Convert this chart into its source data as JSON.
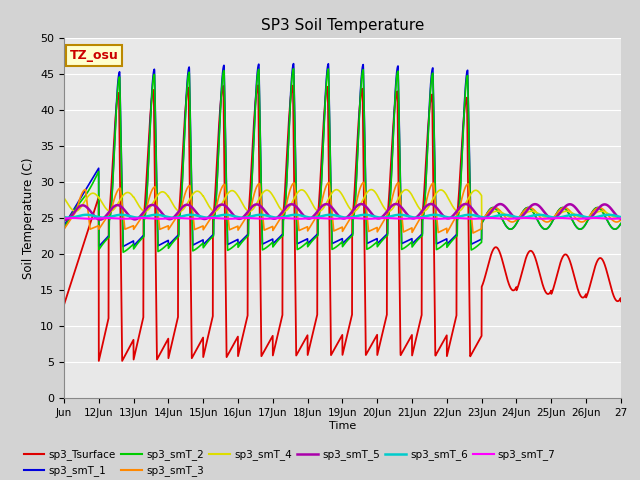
{
  "title": "SP3 Soil Temperature",
  "ylabel": "Soil Temperature (C)",
  "xlabel": "Time",
  "ylim": [
    0,
    50
  ],
  "annotation": "TZ_osu",
  "annotation_color": "#cc0000",
  "annotation_bg": "#ffffcc",
  "annotation_border": "#bb8800",
  "background_color": "#d3d3d3",
  "plot_bg": "#e8e8e8",
  "grid_color": "#ffffff",
  "x_tick_labels": [
    "Jun",
    "12Jun",
    "13Jun",
    "14Jun",
    "15Jun",
    "16Jun",
    "17Jun",
    "18Jun",
    "19Jun",
    "20Jun",
    "21Jun",
    "22Jun",
    "23Jun",
    "24Jun",
    "25Jun",
    "26Jun",
    "27"
  ],
  "yticks": [
    0,
    5,
    10,
    15,
    20,
    25,
    30,
    35,
    40,
    45,
    50
  ],
  "series": [
    {
      "name": "sp3_Tsurface",
      "color": "#dd0000",
      "lw": 1.3
    },
    {
      "name": "sp3_smT_1",
      "color": "#0000dd",
      "lw": 1.2
    },
    {
      "name": "sp3_smT_2",
      "color": "#00cc00",
      "lw": 1.2
    },
    {
      "name": "sp3_smT_3",
      "color": "#ff8800",
      "lw": 1.2
    },
    {
      "name": "sp3_smT_4",
      "color": "#dddd00",
      "lw": 1.2
    },
    {
      "name": "sp3_smT_5",
      "color": "#aa00aa",
      "lw": 1.8
    },
    {
      "name": "sp3_smT_6",
      "color": "#00cccc",
      "lw": 1.8
    },
    {
      "name": "sp3_smT_7",
      "color": "#ff00ff",
      "lw": 1.5
    }
  ]
}
